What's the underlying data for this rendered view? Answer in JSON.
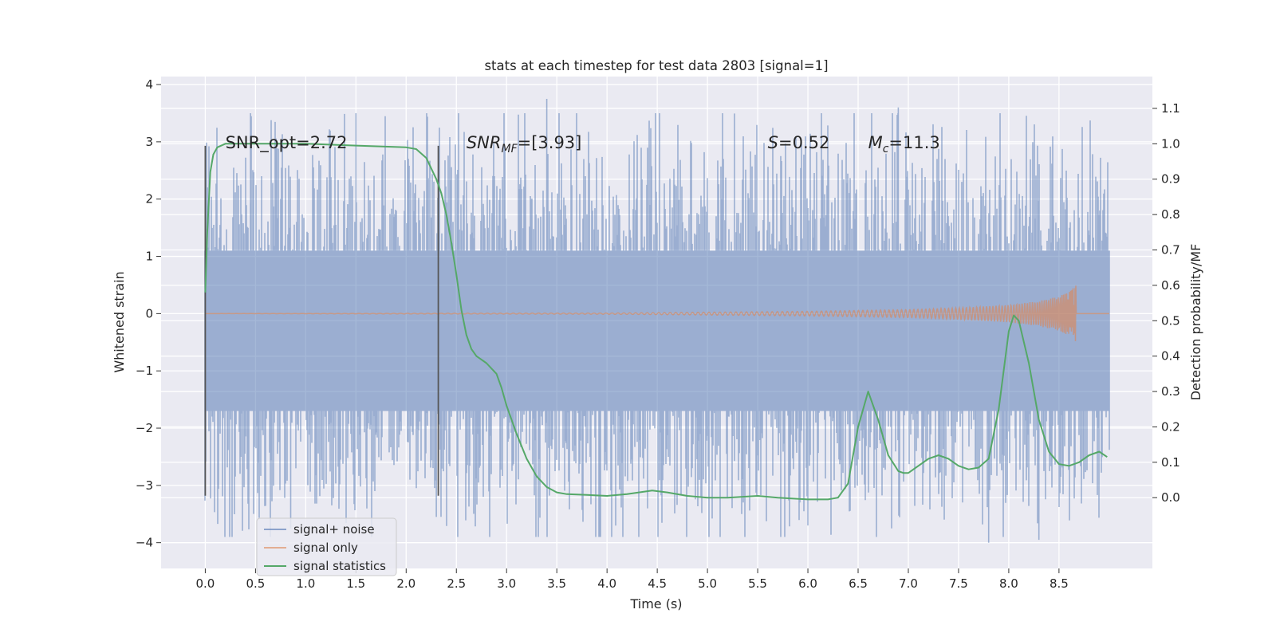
{
  "chart_data": {
    "type": "line",
    "title": "stats at each timestep for test data 2803 [signal=1]",
    "xlabel": "Time (s)",
    "ylabel": "Whitened strain",
    "ylabel_right": "Detection probability/MF",
    "xlim": [
      -0.44,
      9.43
    ],
    "ylim": [
      -4.45,
      4.14
    ],
    "ylim_right": [
      -0.2,
      1.19
    ],
    "x_ticks": [
      0.0,
      0.5,
      1.0,
      1.5,
      2.0,
      2.5,
      3.0,
      3.5,
      4.0,
      4.5,
      5.0,
      5.5,
      6.0,
      6.5,
      7.0,
      7.5,
      8.0,
      8.5
    ],
    "x_tick_labels": [
      "0.0",
      "0.5",
      "1.0",
      "1.5",
      "2.0",
      "2.5",
      "3.0",
      "3.5",
      "4.0",
      "4.5",
      "5.0",
      "5.5",
      "6.0",
      "6.5",
      "7.0",
      "7.5",
      "8.0",
      "8.5"
    ],
    "y_ticks": [
      -4,
      -3,
      -2,
      -1,
      0,
      1,
      2,
      3,
      4
    ],
    "y_tick_labels": [
      "−4",
      "−3",
      "−2",
      "−1",
      "0",
      "1",
      "2",
      "3",
      "4"
    ],
    "y_right_ticks": [
      0.0,
      0.1,
      0.2,
      0.3,
      0.4,
      0.5,
      0.6,
      0.7,
      0.8,
      0.9,
      1.0,
      1.1
    ],
    "y_right_tick_labels": [
      "0.0",
      "0.1",
      "0.2",
      "0.3",
      "0.4",
      "0.5",
      "0.6",
      "0.7",
      "0.8",
      "0.9",
      "1.0",
      "1.1"
    ],
    "grid": true,
    "legend": "lower-left",
    "background_color": "#eaeaf2",
    "series": [
      {
        "name": "signal+ noise",
        "axis": "left",
        "color": "#4c72b0",
        "alpha": 0.5,
        "x_range": [
          0.0,
          9.0
        ],
        "typical_band": [
          -1.7,
          1.1
        ],
        "peak_range": [
          -4.0,
          3.6
        ],
        "peaks": [
          [
            0.45,
            3.5
          ],
          [
            0.85,
            -3.75
          ],
          [
            1.5,
            3.5
          ],
          [
            2.3,
            -3.55
          ],
          [
            3.4,
            3.75
          ],
          [
            6.0,
            -3.7
          ],
          [
            6.9,
            3.6
          ],
          [
            7.8,
            -4.0
          ],
          [
            8.3,
            -3.95
          ]
        ]
      },
      {
        "name": "signal only",
        "axis": "left",
        "color": "#dd8452",
        "alpha": 0.5,
        "note_start": 0.0,
        "note_end": 8.67,
        "envelope": [
          [
            0.0,
            0.0
          ],
          [
            4.0,
            0.01
          ],
          [
            6.0,
            0.04
          ],
          [
            7.0,
            0.07
          ],
          [
            7.5,
            0.1
          ],
          [
            8.0,
            0.15
          ],
          [
            8.3,
            0.22
          ],
          [
            8.5,
            0.3
          ],
          [
            8.6,
            0.38
          ],
          [
            8.67,
            0.5
          ],
          [
            8.68,
            0.0
          ],
          [
            9.0,
            0.0
          ]
        ]
      },
      {
        "name": "signal statistics",
        "axis": "right",
        "color": "#55a868",
        "x": [
          0.0,
          0.02,
          0.05,
          0.08,
          0.12,
          0.2,
          0.3,
          0.5,
          0.8,
          1.0,
          1.5,
          2.0,
          2.1,
          2.2,
          2.3,
          2.35,
          2.4,
          2.45,
          2.5,
          2.55,
          2.6,
          2.65,
          2.7,
          2.75,
          2.8,
          2.9,
          2.95,
          3.0,
          3.1,
          3.2,
          3.3,
          3.4,
          3.5,
          3.6,
          3.8,
          4.0,
          4.2,
          4.45,
          4.6,
          4.8,
          5.0,
          5.2,
          5.5,
          5.7,
          6.0,
          6.2,
          6.3,
          6.4,
          6.5,
          6.6,
          6.7,
          6.8,
          6.9,
          6.95,
          7.0,
          7.1,
          7.2,
          7.3,
          7.4,
          7.5,
          7.6,
          7.7,
          7.8,
          7.9,
          8.0,
          8.05,
          8.1,
          8.2,
          8.3,
          8.4,
          8.5,
          8.6,
          8.7,
          8.8,
          8.9,
          8.98
        ],
        "y": [
          0.58,
          0.75,
          0.92,
          0.97,
          0.99,
          1.0,
          1.0,
          1.0,
          1.0,
          1.0,
          0.995,
          0.99,
          0.985,
          0.96,
          0.9,
          0.86,
          0.8,
          0.72,
          0.63,
          0.53,
          0.46,
          0.42,
          0.4,
          0.39,
          0.38,
          0.35,
          0.31,
          0.26,
          0.18,
          0.11,
          0.06,
          0.03,
          0.015,
          0.01,
          0.008,
          0.005,
          0.01,
          0.02,
          0.015,
          0.005,
          0.0,
          0.0,
          0.005,
          0.0,
          -0.005,
          -0.005,
          0.0,
          0.04,
          0.2,
          0.3,
          0.22,
          0.12,
          0.075,
          0.07,
          0.07,
          0.09,
          0.11,
          0.12,
          0.11,
          0.09,
          0.08,
          0.085,
          0.11,
          0.25,
          0.47,
          0.515,
          0.5,
          0.38,
          0.22,
          0.13,
          0.095,
          0.09,
          0.1,
          0.12,
          0.13,
          0.115
        ]
      }
    ],
    "vertical_lines": [
      0.0,
      2.32
    ],
    "vertical_line_range": [
      -3.18,
      2.93
    ],
    "annotations": [
      {
        "text": "SNR_opt=2.72",
        "x": 0.2,
        "y": 3.0
      },
      {
        "text": "SNR",
        "sub": "MF",
        "rest": "=[3.93]",
        "x": 2.6,
        "y": 3.0
      },
      {
        "text": "S",
        "rest": "=0.52",
        "x": 5.6,
        "y": 3.0
      },
      {
        "text": "M",
        "sub": "c",
        "rest": "=11.3",
        "x": 6.6,
        "y": 3.0
      }
    ]
  }
}
